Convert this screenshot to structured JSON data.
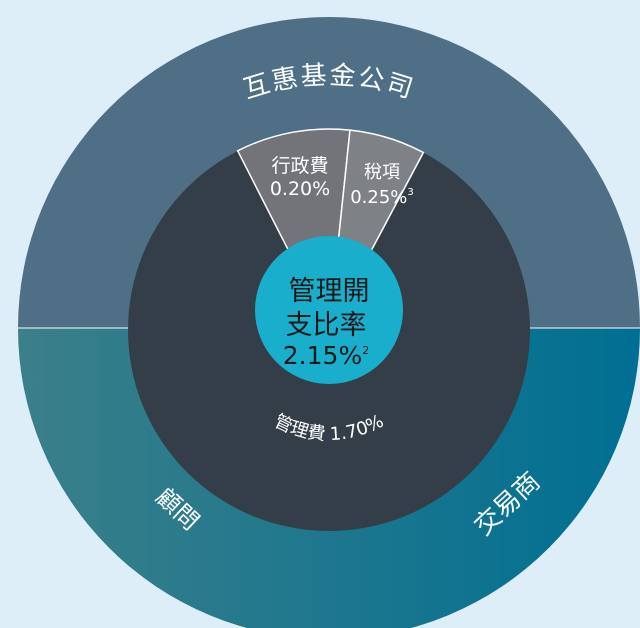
{
  "outer_ring": {
    "top": "互惠基金公司",
    "bottom_left": "顧問",
    "bottom_right": "交易商"
  },
  "inner_ring": {
    "segments": [
      {
        "label": "行政費",
        "value": "0.20%"
      },
      {
        "label": "稅項",
        "value": "0.25%",
        "note": "3"
      },
      {
        "label": "管理費",
        "value": "1.70%"
      }
    ]
  },
  "center": {
    "lines": [
      "管理開",
      "支比率"
    ],
    "value": "2.15%",
    "note": "2"
  }
}
